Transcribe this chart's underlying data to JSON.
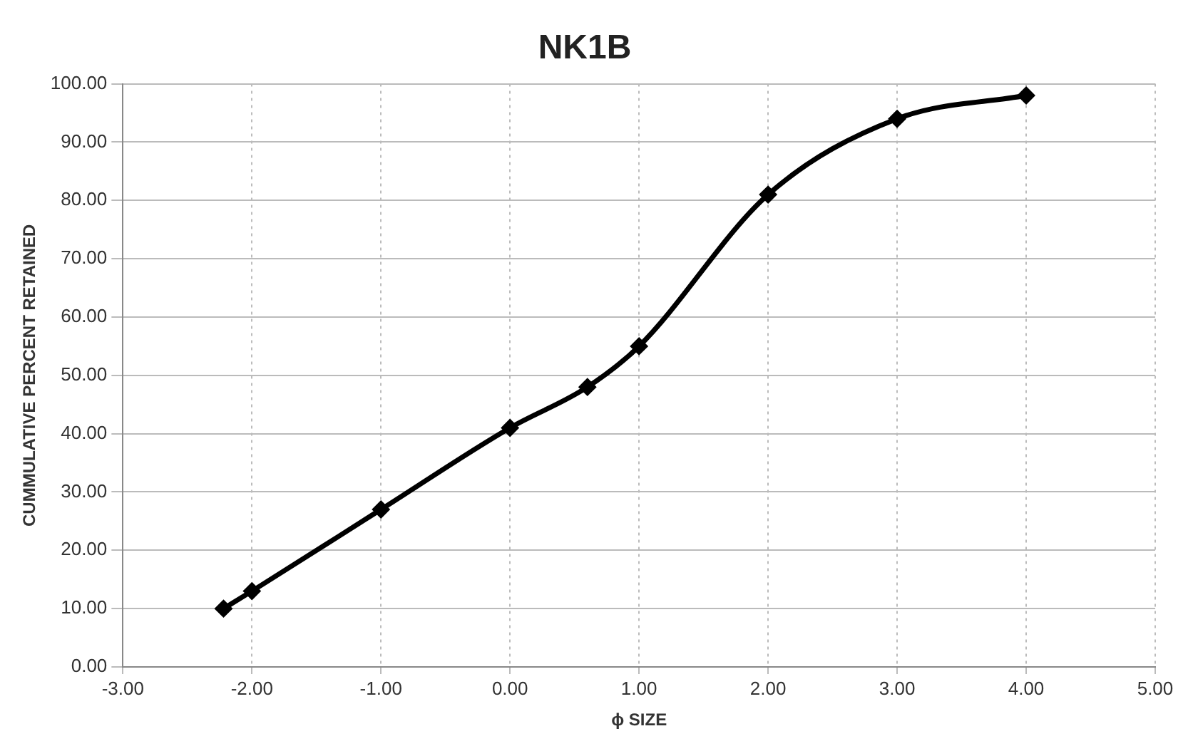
{
  "chart_data": {
    "type": "line",
    "title": "NK1B",
    "xlabel": "ϕ SIZE",
    "ylabel": "CUMMULATIVE PERCENT RETAINED",
    "x": [
      -2.22,
      -2,
      -1,
      0,
      0.6,
      1,
      2,
      3,
      4
    ],
    "series": [
      {
        "color": "#000000",
        "values": [
          10,
          13,
          27,
          41,
          48,
          55,
          81,
          94,
          98
        ]
      }
    ],
    "xlim": [
      -3,
      5
    ],
    "xticks": [
      {
        "value": -3,
        "label": "-3.00"
      },
      {
        "value": -2,
        "label": "-2.00"
      },
      {
        "value": -1,
        "label": "-1.00"
      },
      {
        "value": 0,
        "label": "0.00"
      },
      {
        "value": 1,
        "label": "1.00"
      },
      {
        "value": 2,
        "label": "2.00"
      },
      {
        "value": 3,
        "label": "3.00"
      },
      {
        "value": 4,
        "label": "4.00"
      },
      {
        "value": 5,
        "label": "5.00"
      }
    ],
    "ylim": [
      0,
      100
    ],
    "yticks": [
      {
        "value": 0,
        "label": "0.00"
      },
      {
        "value": 10,
        "label": "10.00"
      },
      {
        "value": 20,
        "label": "20.00"
      },
      {
        "value": 30,
        "label": "30.00"
      },
      {
        "value": 40,
        "label": "40.00"
      },
      {
        "value": 50,
        "label": "50.00"
      },
      {
        "value": 60,
        "label": "60.00"
      },
      {
        "value": 70,
        "label": "70.00"
      },
      {
        "value": 80,
        "label": "80.00"
      },
      {
        "value": 90,
        "label": "90.00"
      },
      {
        "value": 100,
        "label": "100.00"
      }
    ],
    "grid": true,
    "legend": false,
    "marker": "diamond",
    "line_style": "solid"
  }
}
